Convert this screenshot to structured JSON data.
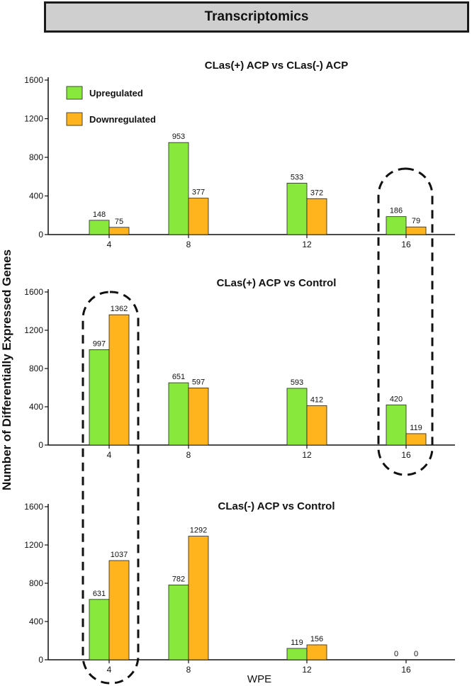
{
  "figure": {
    "banner": "Transcriptomics",
    "y_axis_label": "Number of Differentially Expressed Genes",
    "x_axis_label": "WPE"
  },
  "colors": {
    "upregulated": "#88e83c",
    "downregulated": "#ffb31c",
    "axis": "#111111"
  },
  "chart_data": [
    {
      "type": "bar",
      "title": "CLas(+) ACP vs CLas(-) ACP",
      "categories": [
        "4",
        "8",
        "12",
        "16"
      ],
      "series": [
        {
          "name": "Upregulated",
          "values": [
            148,
            953,
            533,
            186
          ]
        },
        {
          "name": "Downregulated",
          "values": [
            75,
            377,
            372,
            79
          ]
        }
      ],
      "ylim": [
        0,
        1600
      ],
      "yticks": [
        0,
        400,
        800,
        1200,
        1600
      ],
      "legend": "top-left",
      "xlabel": "",
      "ylabel": "Number of Differentially Expressed Genes"
    },
    {
      "type": "bar",
      "title": "CLas(+) ACP vs Control",
      "categories": [
        "4",
        "8",
        "12",
        "16"
      ],
      "series": [
        {
          "name": "Upregulated",
          "values": [
            997,
            651,
            593,
            420
          ]
        },
        {
          "name": "Downregulated",
          "values": [
            1362,
            597,
            412,
            119
          ]
        }
      ],
      "ylim": [
        0,
        1600
      ],
      "yticks": [
        0,
        400,
        800,
        1200,
        1600
      ],
      "xlabel": "",
      "ylabel": "Number of Differentially Expressed Genes"
    },
    {
      "type": "bar",
      "title": "CLas(-) ACP vs Control",
      "categories": [
        "4",
        "8",
        "12",
        "16"
      ],
      "series": [
        {
          "name": "Upregulated",
          "values": [
            631,
            782,
            119,
            0
          ]
        },
        {
          "name": "Downregulated",
          "values": [
            1037,
            1292,
            156,
            0
          ]
        }
      ],
      "ylim": [
        0,
        1600
      ],
      "yticks": [
        0,
        400,
        800,
        1200,
        1600
      ],
      "xlabel": "WPE",
      "ylabel": "Number of Differentially Expressed Genes"
    }
  ]
}
